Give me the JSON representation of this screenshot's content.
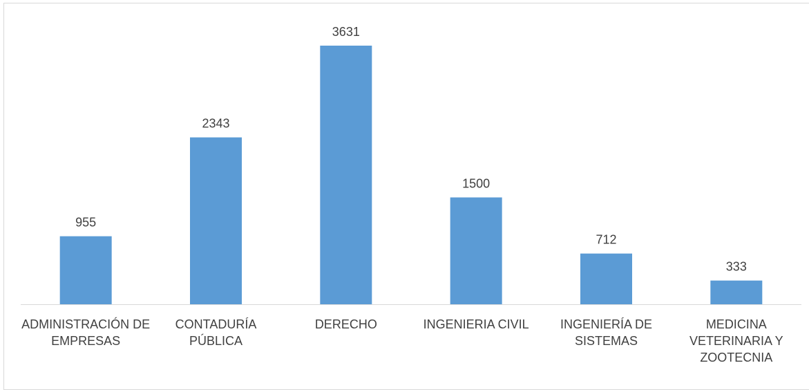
{
  "chart_data": {
    "type": "bar",
    "categories": [
      "ADMINISTRACIÓN DE EMPRESAS",
      "CONTADURÍA PÚBLICA",
      "DERECHO",
      "INGENIERIA CIVIL",
      "INGENIERÍA DE SISTEMAS",
      "MEDICINA VETERINARIA Y ZOOTECNIA"
    ],
    "values": [
      955,
      2343,
      3631,
      1500,
      712,
      333
    ],
    "color": "#5b9bd5"
  }
}
